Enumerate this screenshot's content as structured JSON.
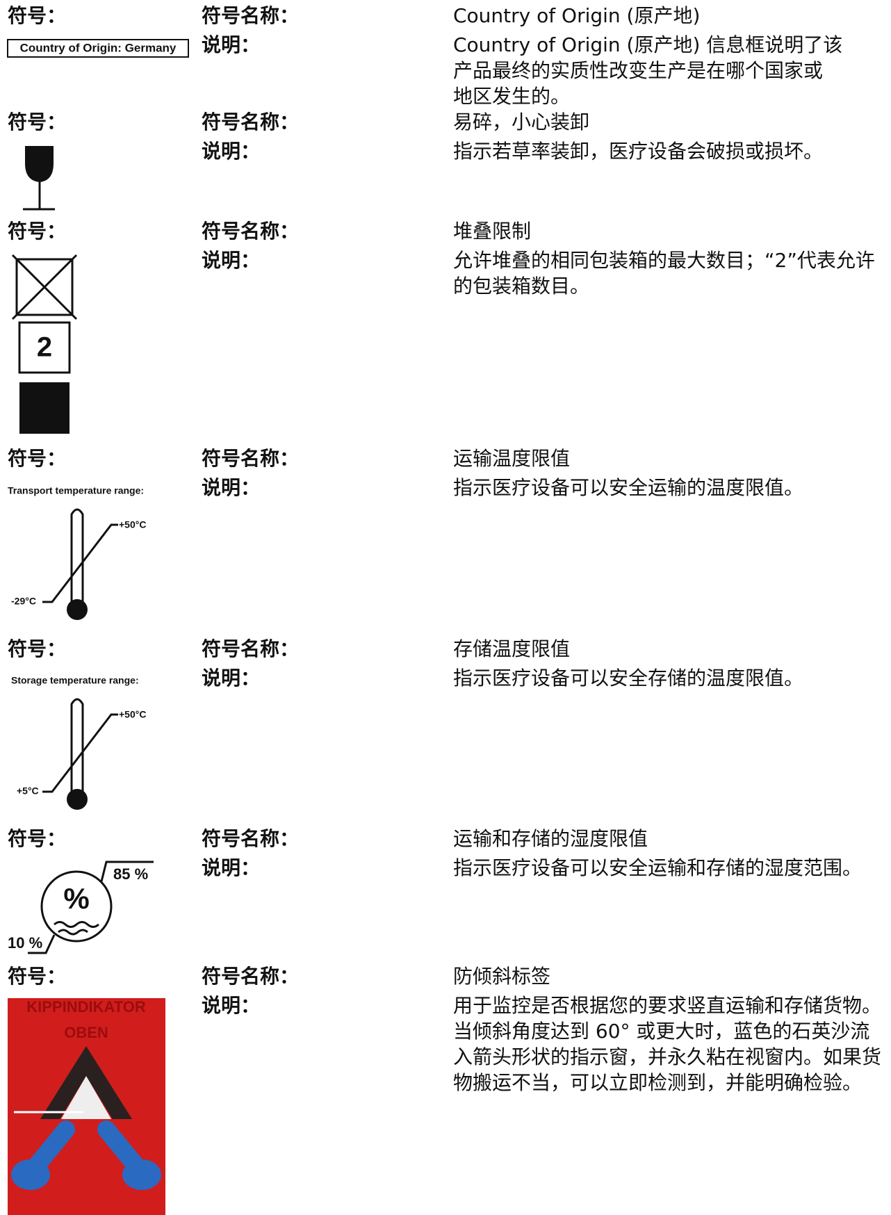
{
  "entries": [
    {
      "symbol_label": "符号：",
      "name_label": "符号名称：",
      "name": "Country of Origin (原产地)",
      "desc_label": "说明：",
      "description": [
        "Country of Origin (原产地) 信息框说明了该",
        "产品最终的实质性改变生产是在哪个国家或",
        "地区发生的。"
      ],
      "symbol_texts": [
        "Country of Origin: Germany"
      ]
    },
    {
      "symbol_label": "符号：",
      "name_label": "符号名称：",
      "name": "易碎，小心装卸",
      "desc_label": "说明：",
      "description": [
        "指示若草率装卸，医疗设备会破损或损坏。"
      ],
      "symbol_texts": []
    },
    {
      "symbol_label": "符号：",
      "name_label": "符号名称：",
      "name": "堆叠限制",
      "desc_label": "说明：",
      "description": [
        "允许堆叠的相同包装箱的最大数目；“2”代表允许",
        "的包装箱数目。"
      ],
      "symbol_texts": [
        "2"
      ]
    },
    {
      "symbol_label": "符号：",
      "name_label": "符号名称：",
      "name": "运输温度限值",
      "desc_label": "说明：",
      "description": [
        "指示医疗设备可以安全运输的温度限值。"
      ],
      "symbol_texts": [
        "Transport temperature range:",
        "+50°C",
        "-29°C"
      ]
    },
    {
      "symbol_label": "符号：",
      "name_label": "符号名称：",
      "name": "存储温度限值",
      "desc_label": "说明：",
      "description": [
        "指示医疗设备可以安全存储的温度限值。"
      ],
      "symbol_texts": [
        "Storage temperature range:",
        "+50°C",
        "+5°C"
      ]
    },
    {
      "symbol_label": "符号：",
      "name_label": "符号名称：",
      "name": "运输和存储的湿度限值",
      "desc_label": "说明：",
      "description": [
        "指示医疗设备可以安全运输和存储的湿度范围。"
      ],
      "symbol_texts": [
        "85 %",
        "10 %",
        "%"
      ]
    },
    {
      "symbol_label": "符号：",
      "name_label": "符号名称：",
      "name": "防倾斜标签",
      "desc_label": "说明：",
      "description": [
        "用于监控是否根据您的要求竖直运输和存储货物。",
        "当倾斜角度达到 60° 或更大时，蓝色的石英沙流",
        "入箭头形状的指示窗，并永久粘在视窗内。如果货",
        "物搬运不当，可以立即检测到，并能明确检验。"
      ],
      "symbol_texts": [
        "KIPPINDIKATOR",
        "OBEN"
      ]
    }
  ]
}
